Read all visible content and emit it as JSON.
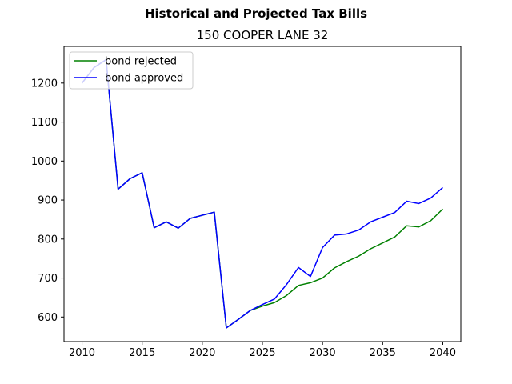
{
  "chart_data": {
    "type": "line",
    "suptitle": "Historical and Projected Tax Bills",
    "title": "150 COOPER LANE  32",
    "xlabel": "",
    "ylabel": "",
    "xlim": [
      2008.5,
      2041.5
    ],
    "ylim": [
      537,
      1294
    ],
    "xticks": [
      2010,
      2015,
      2020,
      2025,
      2030,
      2035,
      2040
    ],
    "yticks": [
      600,
      700,
      800,
      900,
      1000,
      1100,
      1200
    ],
    "grid": false,
    "legend_position": "top-left",
    "x": [
      2010,
      2011,
      2012,
      2013,
      2014,
      2015,
      2016,
      2017,
      2018,
      2019,
      2020,
      2021,
      2022,
      2023,
      2024,
      2025,
      2026,
      2027,
      2028,
      2029,
      2030,
      2031,
      2032,
      2033,
      2034,
      2035,
      2036,
      2037,
      2038,
      2039,
      2040
    ],
    "series": [
      {
        "name": "bond rejected",
        "color": "#008000",
        "values": [
          1200,
          1240,
          1260,
          928,
          955,
          970,
          829,
          844,
          828,
          853,
          861,
          869,
          572,
          594,
          617,
          628,
          637,
          655,
          681,
          688,
          700,
          726,
          742,
          756,
          775,
          790,
          805,
          834,
          831,
          847,
          877
        ]
      },
      {
        "name": "bond approved",
        "color": "#0000ff",
        "values": [
          1200,
          1240,
          1260,
          928,
          955,
          970,
          829,
          844,
          828,
          853,
          861,
          869,
          572,
          594,
          617,
          632,
          646,
          683,
          727,
          704,
          778,
          810,
          813,
          823,
          844,
          856,
          868,
          897,
          891,
          905,
          932
        ]
      }
    ]
  }
}
